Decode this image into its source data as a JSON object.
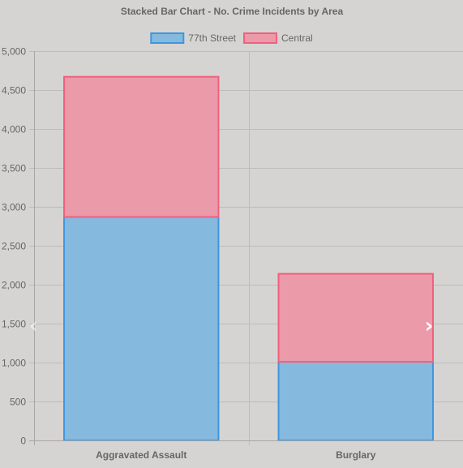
{
  "navigation": {
    "prev_icon": "chevron-left-icon",
    "next_icon": "chevron-right-icon",
    "prev_glyph": "‹",
    "next_glyph": "›"
  },
  "chart_data": {
    "type": "bar",
    "stacked": true,
    "title": "Stacked Bar Chart - No. Crime Incidents by Area",
    "categories": [
      "Aggravated Assault",
      "Burglary"
    ],
    "series": [
      {
        "name": "77th Street",
        "values": [
          2870,
          1010
        ],
        "fill": "#85b9dd",
        "stroke": "#3d97e0"
      },
      {
        "name": "Central",
        "values": [
          1800,
          1130
        ],
        "fill": "#ea9aa8",
        "stroke": "#f0607f"
      }
    ],
    "xlabel": "",
    "ylabel": "",
    "ylim": [
      0,
      5000
    ],
    "yticks": [
      0,
      500,
      1000,
      1500,
      2000,
      2500,
      3000,
      3500,
      4000,
      4500,
      5000
    ],
    "ytick_labels": [
      "0",
      "500",
      "1,000",
      "1,500",
      "2,000",
      "2,500",
      "3,000",
      "3,500",
      "4,000",
      "4,500",
      "5,000"
    ],
    "grid": true,
    "legend_position": "top",
    "background": "#d6d4d2",
    "grid_color": "#bdbcba"
  }
}
